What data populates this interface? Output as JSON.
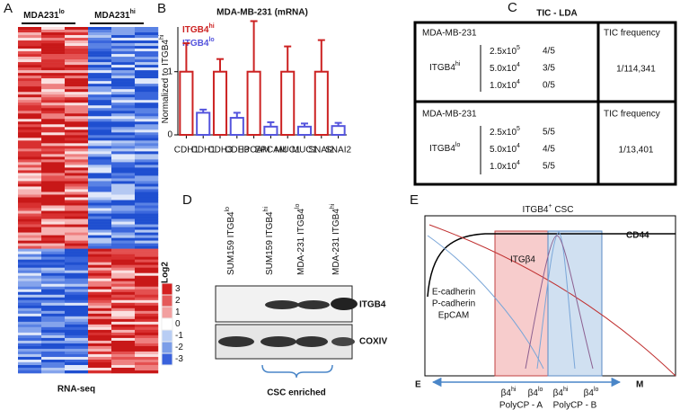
{
  "panel_a": {
    "letter": "A",
    "groups": [
      {
        "text": "MDA231",
        "sup": "lo"
      },
      {
        "text": "MDA231",
        "sup": "hi"
      }
    ],
    "legend_title": "Log2",
    "legend_ticks": [
      3,
      2,
      1,
      0,
      -1,
      -2,
      -3
    ],
    "caption": "RNA-seq"
  },
  "chart_data": {
    "type": "bar",
    "panel_label": "B",
    "title": "MDA-MB-231 (mRNA)",
    "y_label": {
      "text": "Normalized to ITGB4",
      "sup": "hi"
    },
    "categories": [
      "CDH1",
      "CDH1",
      "CDH3",
      "CDH3",
      "EPCAM",
      "EPCAM",
      "MUC1",
      "MUC1",
      "SNAI2",
      "SNAI2"
    ],
    "series": [
      {
        "name": "ITGB4",
        "name_sup": "hi",
        "color": "#cc2222",
        "values": [
          1,
          null,
          1,
          null,
          1,
          null,
          1,
          null,
          1,
          null
        ],
        "errors": [
          0.45,
          null,
          0.2,
          null,
          0.8,
          null,
          0.4,
          null,
          0.5,
          null
        ]
      },
      {
        "name": "ITGB4",
        "name_sup": "lo",
        "color": "#5555dd",
        "values": [
          null,
          0.35,
          null,
          0.27,
          null,
          0.13,
          null,
          0.13,
          null,
          0.14
        ],
        "errors": [
          null,
          0.05,
          null,
          0.08,
          null,
          0.07,
          null,
          0.05,
          null,
          0.05
        ]
      }
    ],
    "ylim": [
      0,
      1.85
    ],
    "yticks": [
      0,
      1
    ]
  },
  "panel_c": {
    "letter": "C",
    "title": "TIC - LDA",
    "blocks": [
      {
        "cell_line": "MDA-MB-231",
        "group": {
          "text": "ITGB4",
          "sup": "hi"
        },
        "header": "TIC frequency",
        "frequency": "1/114,341",
        "rows": [
          {
            "dose": {
              "text": "2.5x10",
              "sup": "5"
            },
            "result": "4/5"
          },
          {
            "dose": {
              "text": "5.0x10",
              "sup": "4"
            },
            "result": "3/5"
          },
          {
            "dose": {
              "text": "1.0x10",
              "sup": "4"
            },
            "result": "0/5"
          }
        ]
      },
      {
        "cell_line": "MDA-MB-231",
        "group": {
          "text": "ITGB4",
          "sup": "lo"
        },
        "header": "TIC frequency",
        "frequency": "1/13,401",
        "rows": [
          {
            "dose": {
              "text": "2.5x10",
              "sup": "5"
            },
            "result": "5/5"
          },
          {
            "dose": {
              "text": "5.0x10",
              "sup": "4"
            },
            "result": "4/5"
          },
          {
            "dose": {
              "text": "1.0x10",
              "sup": "4"
            },
            "result": "5/5"
          }
        ]
      }
    ]
  },
  "panel_d": {
    "letter": "D",
    "lanes": [
      {
        "text": "SUM159 ITGB4",
        "sup": "lo"
      },
      {
        "text": "SUM159 ITGB4",
        "sup": "hi"
      },
      {
        "text": "MDA-231 ITGB4",
        "sup": "lo"
      },
      {
        "text": "MDA-231 ITGB4",
        "sup": "hi"
      }
    ],
    "blots": [
      "ITGB4",
      "COXIV"
    ],
    "bracket_label": "CSC enriched"
  },
  "panel_e": {
    "letter": "E",
    "csc_label": {
      "text": "ITGB4",
      "sup": "+",
      "rest": " CSC"
    },
    "cd44": "CD44",
    "itgb4": "ITGβ4",
    "epithelial": [
      "E-cadherin",
      "P-cadherin",
      "EpCAM"
    ],
    "axis_start": "E",
    "axis_end": "M",
    "states": [
      {
        "text": "β4",
        "sup": "hi"
      },
      {
        "text": "β4",
        "sup": "lo"
      },
      {
        "text": "β4",
        "sup": "hi"
      },
      {
        "text": "β4",
        "sup": "lo"
      }
    ],
    "populations": [
      "PolyCP - A",
      "PolyCP - B"
    ]
  }
}
